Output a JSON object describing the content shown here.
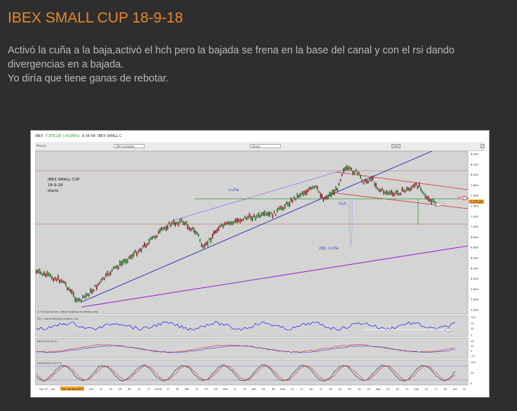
{
  "post": {
    "title": "IBEX SMALL CUP 18-9-18",
    "paragraphs": [
      "Activó la cuña a la baja,activó el hch pero la bajada se frena en la base del canal  y con el rsi dando divergencias en a bajada.",
      "Yo diría que tiene ganas de rebotar."
    ]
  },
  "chart_window": {
    "topbar": {
      "index_label": "IBEX",
      "last_value": "7.375,20",
      "change": "(+0,05%)",
      "time": "9:34:58",
      "instrument": "IBEX SMALL C"
    },
    "toolbar": {
      "tab_label": "Precio",
      "sessions_select": "260 unidades",
      "interval_select": "Diario"
    },
    "overlay": {
      "title_lines": [
        "IBEX SMALL CUP",
        "18-9-18",
        "diario"
      ],
      "cuna_label": "cuña",
      "hch_label": "hch",
      "objective_label": "obj. cuña",
      "watermark": "© IT-Finance.com, datos recibidos en tiempo real",
      "last_price_tag": "7.375,20"
    },
    "price_axis": [
      "8.200",
      "8.100",
      "8.000",
      "7.800",
      "7.600",
      "7.400",
      "7.200",
      "7.000",
      "6.800",
      "6.600",
      "6.400",
      "6.200",
      "6.000",
      "5.800",
      "5.600",
      "5.400"
    ],
    "indicators": {
      "rsi_label": "RSI - Fuerza Relativa (Índice) (14)",
      "rsi_ticks": [
        "100",
        "70",
        "30",
        "0"
      ],
      "macd_label": "MACD (24 26 9)",
      "macd_ticks": [
        "40",
        "20",
        "0",
        "-20"
      ],
      "stoch_label": "Estocástico (14 6 3)",
      "stoch_ticks": [
        "100",
        "50",
        "0"
      ]
    },
    "x_axis": [
      "sep 07",
      "oct",
      "14",
      "21",
      "28",
      "nov",
      "15",
      "19",
      "26",
      "dic",
      "10",
      "17",
      "2018",
      "17",
      "29",
      "feb",
      "12",
      "19",
      "26",
      "mar",
      "12",
      "19",
      "abr",
      "09",
      "16",
      "may",
      "14",
      "21",
      "jun",
      "11",
      "18",
      "jul",
      "09",
      "16",
      "23",
      "ago",
      "13",
      "20",
      "27",
      "sep",
      "10",
      "17",
      "24",
      "oct",
      "12"
    ],
    "x_axis_highlight": "mar 26-sep-2017",
    "colors": {
      "uptrend_line": "#1f2ea8",
      "channel_line": "#8a6ff0",
      "purple_line": "#9a2bd3",
      "red_line": "#d42a2a",
      "neckline": "#2aa12a",
      "horizontal_levels": "#c78a6a"
    }
  }
}
